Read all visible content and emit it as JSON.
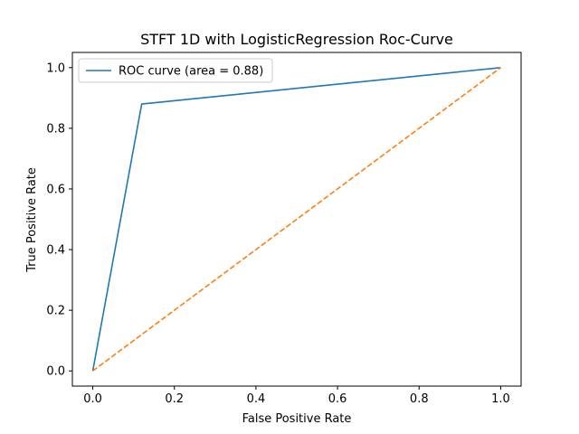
{
  "chart_data": {
    "type": "line",
    "title": "STFT 1D with LogisticRegression Roc-Curve",
    "xlabel": "False Positive Rate",
    "ylabel": "True Positive Rate",
    "xlim": [
      -0.05,
      1.05
    ],
    "ylim": [
      -0.05,
      1.05
    ],
    "xticks": [
      0.0,
      0.2,
      0.4,
      0.6,
      0.8,
      1.0
    ],
    "yticks": [
      0.0,
      0.2,
      0.4,
      0.6,
      0.8,
      1.0
    ],
    "xtick_labels": [
      "0.0",
      "0.2",
      "0.4",
      "0.6",
      "0.8",
      "1.0"
    ],
    "ytick_labels": [
      "0.0",
      "0.2",
      "0.4",
      "0.6",
      "0.8",
      "1.0"
    ],
    "grid": false,
    "legend_position": "upper-left",
    "series": [
      {
        "name": "ROC curve (area = 0.88)",
        "color": "#1f77b4",
        "style": "solid",
        "x": [
          0.0,
          0.12,
          1.0
        ],
        "y": [
          0.0,
          0.88,
          1.0
        ]
      },
      {
        "color": "#ff7f0e",
        "style": "dashed",
        "x": [
          0.0,
          1.0
        ],
        "y": [
          0.0,
          1.0
        ]
      }
    ]
  }
}
